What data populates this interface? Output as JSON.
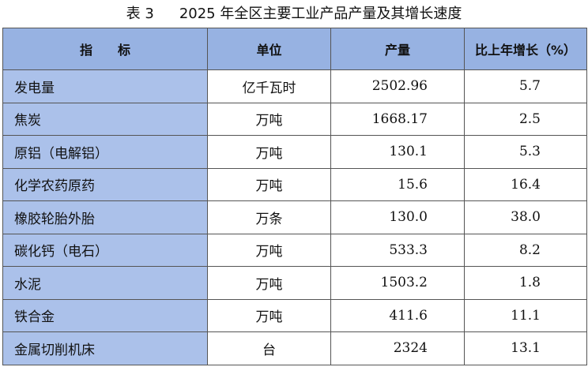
{
  "title": {
    "number": "表 3",
    "text": "2025 年全区主要工业产品产量及其增长速度"
  },
  "table": {
    "header": [
      "指　　标",
      "单位",
      "产量",
      "比上年增长（%）"
    ],
    "rows": [
      [
        "发电量",
        "亿千瓦时",
        "2502.96",
        "5.7"
      ],
      [
        "焦炭",
        "万吨",
        "1668.17",
        "2.5"
      ],
      [
        "原铝（电解铝）",
        "万吨",
        "130.1",
        "5.3"
      ],
      [
        "化学农药原药",
        "万吨",
        "15.6",
        "16.4"
      ],
      [
        "橡胶轮胎外胎",
        "万条",
        "130.0",
        "38.0"
      ],
      [
        "碳化钙（电石）",
        "万吨",
        "533.3",
        "8.2"
      ],
      [
        "水泥",
        "万吨",
        "1503.2",
        "1.8"
      ],
      [
        "铁合金",
        "万吨",
        "411.6",
        "11.1"
      ],
      [
        "金属切削机床",
        "台",
        "2324",
        "13.1"
      ]
    ]
  }
}
